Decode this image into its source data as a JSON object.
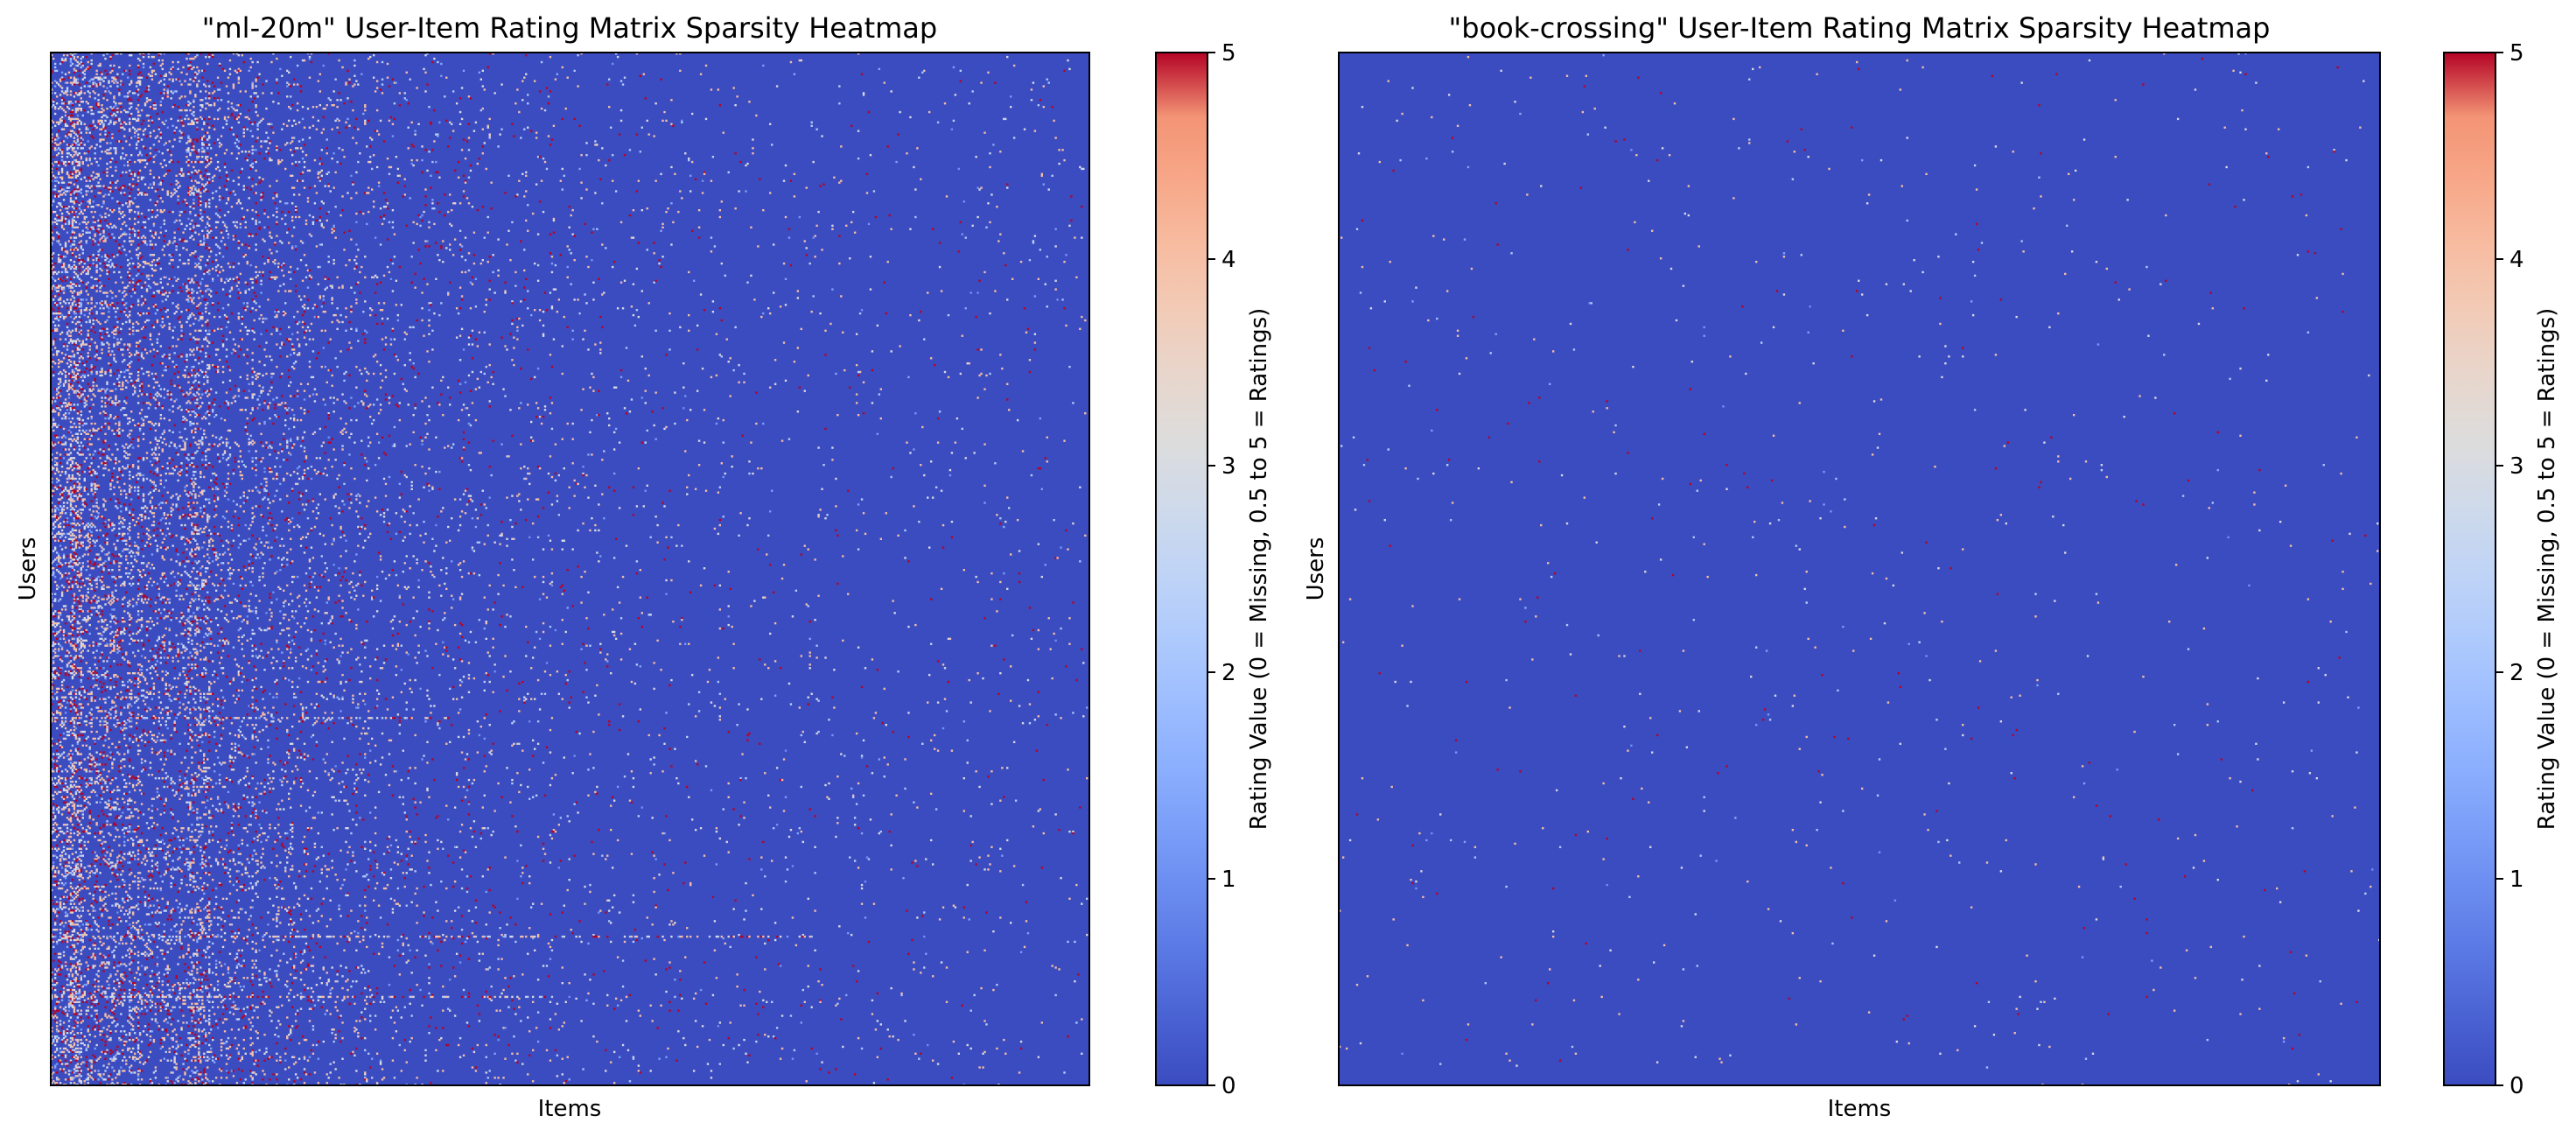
{
  "chart_data": [
    {
      "type": "heatmap",
      "title": "\"ml-20m\" User-Item Rating Matrix Sparsity Heatmap",
      "xlabel": "Items",
      "ylabel": "Users",
      "colorbar": {
        "label": "Rating Value (0 = Missing, 0.5 to 5 = Ratings)",
        "range": [
          0,
          5
        ],
        "ticks": [
          0,
          1,
          2,
          3,
          4,
          5
        ],
        "colormap": "coolwarm",
        "color_low": "#3b4cc0",
        "color_mid": "#dddddd",
        "color_high": "#b40426"
      },
      "background_value": 0,
      "pattern": "dense ratings concentrated in leftmost item columns (popular items), density decaying toward the right; roughly 5% of cells rated",
      "seed": 20
    },
    {
      "type": "heatmap",
      "title": "\"book-crossing\" User-Item Rating Matrix Sparsity Heatmap",
      "xlabel": "Items",
      "ylabel": "Users",
      "colorbar": {
        "label": "Rating Value (0 = Missing, 0.5 to 5 = Ratings)",
        "range": [
          0,
          5
        ],
        "ticks": [
          0,
          1,
          2,
          3,
          4,
          5
        ],
        "colormap": "coolwarm",
        "color_low": "#3b4cc0",
        "color_mid": "#dddddd",
        "color_high": "#b40426"
      },
      "background_value": 0,
      "pattern": "extremely sparse, uniformly scattered ratings across the whole matrix",
      "seed": 77
    }
  ]
}
